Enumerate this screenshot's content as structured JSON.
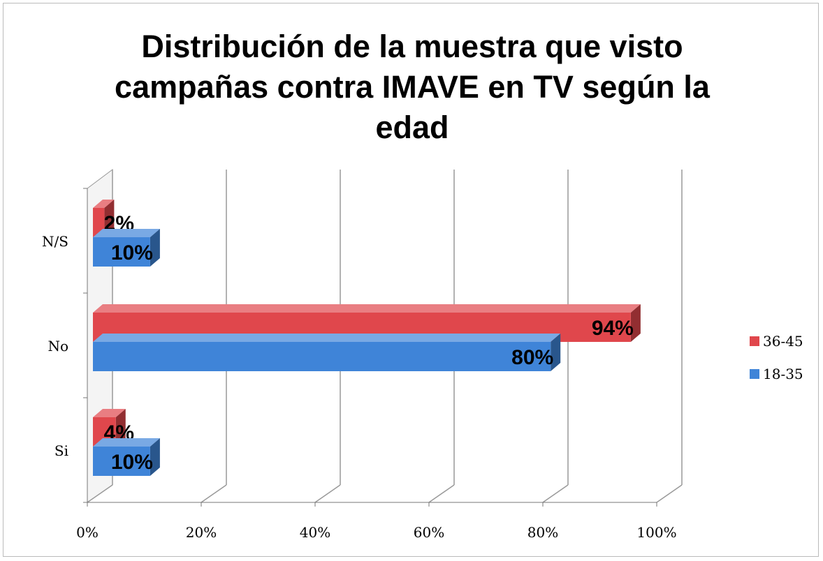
{
  "chart_data": {
    "type": "bar",
    "orientation": "horizontal",
    "title": "Distribución de la muestra que visto campañas contra IMAVE en TV según la edad",
    "categories": [
      "N/S",
      "No",
      "Si"
    ],
    "series": [
      {
        "name": "36-45",
        "color": "#e0474c",
        "values": [
          2,
          94,
          4
        ],
        "value_labels": [
          "2%",
          "94%",
          "4%"
        ]
      },
      {
        "name": "18-35",
        "color": "#3f84d8",
        "values": [
          10,
          80,
          10
        ],
        "value_labels": [
          "10%",
          "80%",
          "10%"
        ]
      }
    ],
    "xlim": [
      0,
      100
    ],
    "xticks": [
      {
        "value": 0,
        "label": "0%"
      },
      {
        "value": 20,
        "label": "20%"
      },
      {
        "value": 40,
        "label": "40%"
      },
      {
        "value": 60,
        "label": "60%"
      },
      {
        "value": 80,
        "label": "80%"
      },
      {
        "value": 100,
        "label": "100%"
      }
    ],
    "grid": true,
    "legend": "right"
  }
}
